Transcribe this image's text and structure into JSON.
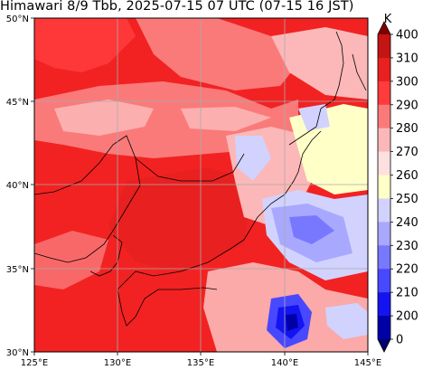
{
  "title": "Himawari 8/9 Tbb, 2025-07-15 07 UTC (07-15 16 JST)",
  "map": {
    "lon_range": [
      125,
      145
    ],
    "lat_range": [
      30,
      50
    ],
    "grid": true,
    "x_ticks": [
      "125°E",
      "130°E",
      "135°E",
      "140°E",
      "145°E"
    ],
    "y_ticks": [
      "50°N",
      "45°N",
      "40°N",
      "35°N",
      "30°N"
    ],
    "background_color": "#f22222"
  },
  "colorbar": {
    "unit": "K",
    "levels": [
      "400",
      "310",
      "300",
      "290",
      "280",
      "270",
      "260",
      "250",
      "240",
      "230",
      "220",
      "210",
      "200",
      "0"
    ],
    "colors": [
      "#7f0000",
      "#c41414",
      "#e82020",
      "#ff3b3b",
      "#fa7a7a",
      "#fcb8b8",
      "#ffe0e0",
      "#ffffc8",
      "#d2d2ff",
      "#a8a8ff",
      "#7878ff",
      "#4848ff",
      "#1414f0",
      "#0000a8",
      "#00006e"
    ]
  }
}
